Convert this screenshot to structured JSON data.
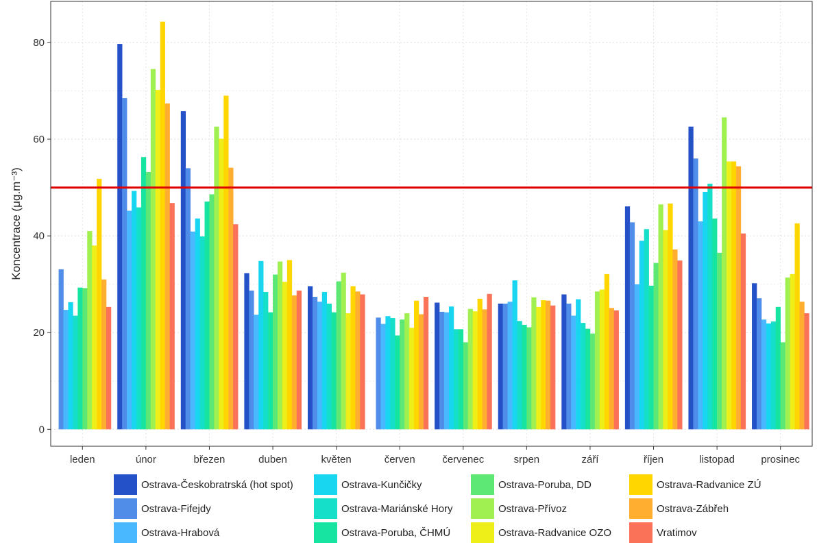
{
  "chart_data": {
    "type": "bar",
    "title": "",
    "xlabel": "",
    "ylabel": "Koncentrace (μg.m⁻³)",
    "ylim": [
      -3.5,
      88.5
    ],
    "yticks": [
      0,
      20,
      40,
      60,
      80
    ],
    "grid": true,
    "legend_position": "bottom",
    "reference_line": {
      "value": 50,
      "color": "#e00000"
    },
    "categories": [
      "leden",
      "únor",
      "březen",
      "duben",
      "květen",
      "červen",
      "červenec",
      "srpen",
      "září",
      "říjen",
      "listopad",
      "prosinec"
    ],
    "series": [
      {
        "name": "Ostrava-Českobratrská (hot spot)",
        "color": "#2450c8",
        "values": [
          null,
          79.7,
          65.8,
          32.3,
          29.6,
          null,
          26.2,
          26.0,
          27.9,
          46.1,
          62.6,
          30.2
        ]
      },
      {
        "name": "Ostrava-Fifejdy",
        "color": "#4f8de8",
        "values": [
          33.1,
          68.5,
          54.0,
          28.7,
          27.4,
          23.1,
          24.3,
          26.0,
          26.0,
          42.8,
          56.0,
          27.1
        ]
      },
      {
        "name": "Ostrava-Hrabová",
        "color": "#49b8ff",
        "values": [
          24.7,
          45.2,
          40.9,
          23.7,
          26.4,
          21.8,
          24.2,
          26.4,
          23.5,
          30.0,
          43.0,
          22.7
        ]
      },
      {
        "name": "Ostrava-Kunčičky",
        "color": "#18d5f0",
        "values": [
          26.3,
          49.3,
          43.6,
          34.8,
          28.4,
          23.4,
          25.4,
          30.8,
          26.9,
          39.0,
          49.1,
          21.9
        ]
      },
      {
        "name": "Ostrava-Mariánské Hory",
        "color": "#15dfc8",
        "values": [
          23.5,
          45.9,
          39.9,
          28.4,
          26.0,
          23.0,
          20.7,
          22.4,
          22.0,
          41.4,
          50.8,
          22.3
        ]
      },
      {
        "name": "Ostrava-Poruba, ČHMÚ",
        "color": "#16e4a0",
        "values": [
          29.3,
          56.3,
          47.1,
          24.2,
          24.2,
          19.4,
          20.7,
          21.6,
          20.8,
          29.7,
          43.6,
          25.3
        ]
      },
      {
        "name": "Ostrava-Poruba, DD",
        "color": "#5de875",
        "values": [
          29.2,
          53.2,
          48.6,
          32.0,
          30.6,
          22.7,
          18.0,
          21.1,
          19.8,
          34.4,
          36.5,
          18.0
        ]
      },
      {
        "name": "Ostrava-Přívoz",
        "color": "#9ff050",
        "values": [
          41.0,
          74.5,
          62.6,
          34.7,
          32.4,
          24.0,
          24.9,
          27.3,
          28.5,
          46.5,
          64.5,
          31.4
        ]
      },
      {
        "name": "Ostrava-Radvanice OZO",
        "color": "#eeee18",
        "values": [
          38.0,
          70.2,
          60.1,
          30.5,
          24.0,
          21.0,
          24.4,
          25.3,
          28.9,
          41.2,
          55.4,
          32.1
        ]
      },
      {
        "name": "Ostrava-Radvanice ZÚ",
        "color": "#ffd600",
        "values": [
          51.8,
          84.3,
          69.0,
          35.0,
          29.6,
          26.6,
          27.0,
          26.7,
          32.1,
          46.7,
          55.4,
          42.6
        ]
      },
      {
        "name": "Ostrava-Zábřeh",
        "color": "#ffae30",
        "values": [
          31.0,
          67.4,
          54.1,
          27.7,
          28.5,
          23.8,
          24.8,
          26.6,
          25.1,
          37.2,
          54.4,
          26.4
        ]
      },
      {
        "name": "Vratimov",
        "color": "#fa7258",
        "values": [
          25.3,
          46.8,
          42.4,
          28.7,
          27.9,
          27.4,
          28.0,
          25.6,
          24.6,
          34.9,
          40.5,
          24.0
        ]
      }
    ]
  }
}
